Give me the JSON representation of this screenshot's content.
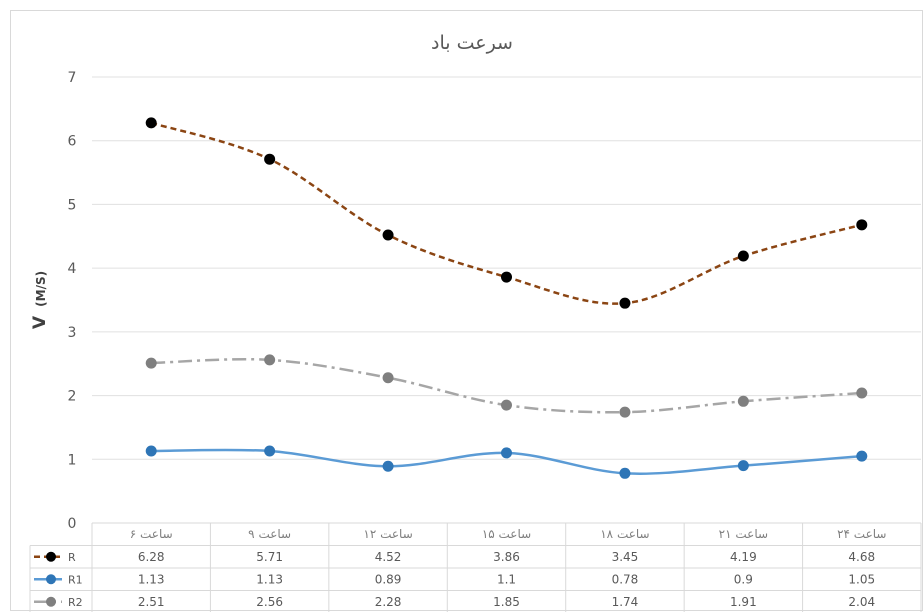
{
  "chart_data": {
    "type": "line",
    "title": "سرعت باد",
    "ylabel": "V",
    "ylabel_unit": "(M/S)",
    "xlabel": "",
    "ylim": [
      0,
      7
    ],
    "yticks": [
      0,
      1,
      2,
      3,
      4,
      5,
      6,
      7
    ],
    "grid": true,
    "legend": "data-table-left",
    "categories": [
      "ساعت ۶",
      "ساعت ۹",
      "ساعت ۱۲",
      "ساعت ۱۵",
      "ساعت ۱۸",
      "ساعت ۲۱",
      "ساعت ۲۴"
    ],
    "series": [
      {
        "name": "R",
        "values": [
          6.28,
          5.71,
          4.52,
          3.86,
          3.45,
          4.19,
          4.68
        ],
        "line_color": "#8b4513",
        "marker_color": "#000000",
        "dash": "dash"
      },
      {
        "name": "R1",
        "values": [
          1.13,
          1.13,
          0.89,
          1.1,
          0.78,
          0.9,
          1.05
        ],
        "line_color": "#5b9bd5",
        "marker_color": "#2e75b6",
        "dash": "solid"
      },
      {
        "name": "R2",
        "values": [
          2.51,
          2.56,
          2.28,
          1.85,
          1.74,
          1.91,
          2.04
        ],
        "line_color": "#a6a6a6",
        "marker_color": "#7f7f7f",
        "dash": "dashdot"
      }
    ]
  }
}
